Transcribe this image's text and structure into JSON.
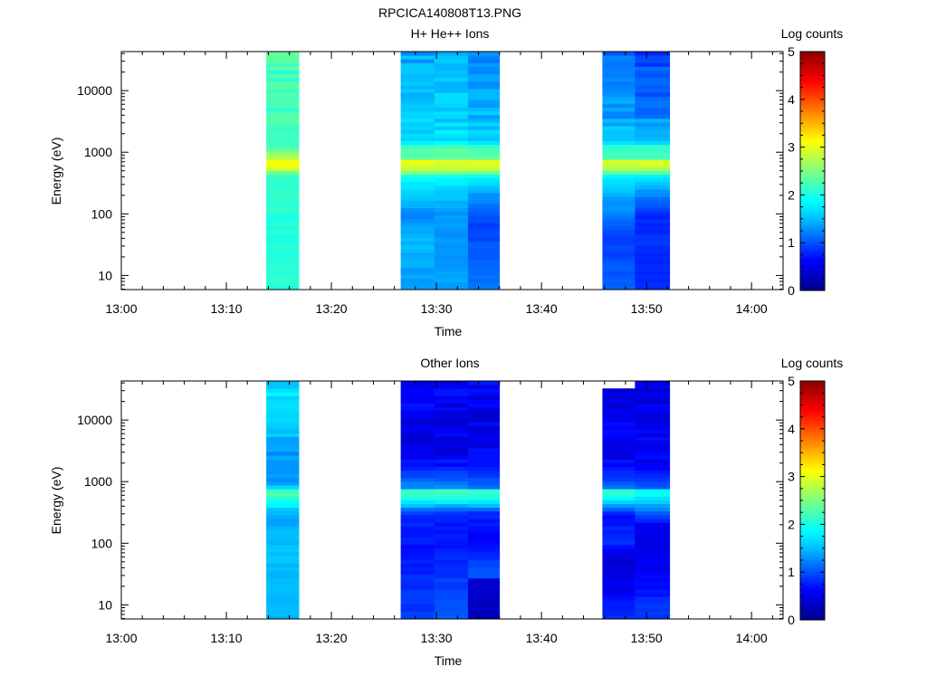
{
  "figure": {
    "title": "RPCICA140808T13.PNG"
  },
  "colors": {
    "colormap": [
      "#00008b",
      "#0000ff",
      "#00bfff",
      "#00ffff",
      "#7fff7f",
      "#ffff00",
      "#ff7f00",
      "#ff0000",
      "#8b0000"
    ]
  },
  "chart_data": [
    {
      "type": "heatmap",
      "title": "H+ He++ Ions",
      "xlabel": "Time",
      "ylabel": "Energy (eV)",
      "y_scale": "log",
      "ylim": [
        5.9,
        43000
      ],
      "xlim": [
        "13:00",
        "14:03"
      ],
      "x_ticks": [
        "13:00",
        "13:10",
        "13:20",
        "13:30",
        "13:40",
        "13:50",
        "14:00"
      ],
      "y_ticks": [
        "10",
        "100",
        "1000",
        "10000"
      ],
      "colorbar": {
        "label": "Log counts",
        "range": [
          0,
          5
        ],
        "ticks": [
          "0",
          "1",
          "2",
          "3",
          "4",
          "5"
        ]
      },
      "columns": [
        {
          "start": "13:13.8",
          "end": "13:16.9",
          "profile": [
            [
              6,
              2.1
            ],
            [
              80,
              2.05
            ],
            [
              400,
              2.15
            ],
            [
              480,
              2.5
            ],
            [
              550,
              3.0
            ],
            [
              700,
              3.1
            ],
            [
              800,
              2.8
            ],
            [
              1100,
              2.4
            ],
            [
              1400,
              2.2
            ],
            [
              5000,
              2.15
            ],
            [
              20000,
              2.2
            ],
            [
              43000,
              2.25
            ]
          ]
        },
        {
          "start": "13:26.6",
          "end": "13:29.8",
          "profile": [
            [
              6,
              1.3
            ],
            [
              40,
              1.5
            ],
            [
              100,
              1.2
            ],
            [
              200,
              1.6
            ],
            [
              400,
              1.9
            ],
            [
              500,
              2.7
            ],
            [
              700,
              3.1
            ],
            [
              800,
              2.3
            ],
            [
              1200,
              2.3
            ],
            [
              1500,
              1.7
            ],
            [
              5000,
              1.5
            ],
            [
              43000,
              1.4
            ]
          ]
        },
        {
          "start": "13:29.8",
          "end": "13:33.0",
          "profile": [
            [
              6,
              1.35
            ],
            [
              100,
              1.3
            ],
            [
              200,
              1.55
            ],
            [
              400,
              1.85
            ],
            [
              500,
              2.7
            ],
            [
              700,
              3.1
            ],
            [
              800,
              2.3
            ],
            [
              1200,
              2.3
            ],
            [
              1500,
              1.7
            ],
            [
              5000,
              1.55
            ],
            [
              43000,
              1.45
            ]
          ]
        },
        {
          "start": "13:33.0",
          "end": "13:36.0",
          "profile": [
            [
              6,
              1.2
            ],
            [
              60,
              0.9
            ],
            [
              100,
              1.0
            ],
            [
              200,
              1.3
            ],
            [
              400,
              1.8
            ],
            [
              500,
              2.7
            ],
            [
              700,
              3.1
            ],
            [
              800,
              2.3
            ],
            [
              1200,
              2.25
            ],
            [
              1500,
              1.6
            ],
            [
              5000,
              1.4
            ],
            [
              43000,
              1.2
            ]
          ]
        },
        {
          "start": "13:45.8",
          "end": "13:48.9",
          "profile": [
            [
              6,
              1.1
            ],
            [
              40,
              0.9
            ],
            [
              100,
              1.2
            ],
            [
              200,
              1.4
            ],
            [
              400,
              1.8
            ],
            [
              500,
              2.6
            ],
            [
              700,
              3.0
            ],
            [
              800,
              2.2
            ],
            [
              1200,
              2.2
            ],
            [
              1500,
              1.6
            ],
            [
              5000,
              1.3
            ],
            [
              43000,
              1.1
            ]
          ]
        },
        {
          "start": "13:48.9",
          "end": "13:52.2",
          "profile": [
            [
              6,
              0.85
            ],
            [
              100,
              0.8
            ],
            [
              200,
              1.2
            ],
            [
              400,
              1.7
            ],
            [
              500,
              2.6
            ],
            [
              700,
              3.0
            ],
            [
              800,
              2.2
            ],
            [
              1200,
              2.2
            ],
            [
              1500,
              1.5
            ],
            [
              5000,
              1.2
            ],
            [
              43000,
              0.9
            ]
          ]
        }
      ]
    },
    {
      "type": "heatmap",
      "title": "Other Ions",
      "xlabel": "Time",
      "ylabel": "Energy (eV)",
      "y_scale": "log",
      "ylim": [
        5.9,
        43000
      ],
      "xlim": [
        "13:00",
        "14:03"
      ],
      "x_ticks": [
        "13:00",
        "13:10",
        "13:20",
        "13:30",
        "13:40",
        "13:50",
        "14:00"
      ],
      "y_ticks": [
        "10",
        "100",
        "1000",
        "10000"
      ],
      "colorbar": {
        "label": "Log counts",
        "range": [
          0,
          5
        ],
        "ticks": [
          "0",
          "1",
          "2",
          "3",
          "4",
          "5"
        ]
      },
      "columns": [
        {
          "start": "13:13.8",
          "end": "13:16.9",
          "profile": [
            [
              6,
              1.5
            ],
            [
              100,
              1.5
            ],
            [
              300,
              1.4
            ],
            [
              500,
              2.0
            ],
            [
              650,
              2.4
            ],
            [
              750,
              1.9
            ],
            [
              1000,
              1.3
            ],
            [
              3000,
              1.4
            ],
            [
              10000,
              1.6
            ],
            [
              43000,
              1.7
            ]
          ]
        },
        {
          "start": "13:26.6",
          "end": "13:29.8",
          "profile": [
            [
              6,
              0.9
            ],
            [
              30,
              0.8
            ],
            [
              100,
              0.7
            ],
            [
              300,
              0.8
            ],
            [
              500,
              1.9
            ],
            [
              700,
              2.3
            ],
            [
              800,
              1.3
            ],
            [
              2000,
              0.6
            ],
            [
              10000,
              0.5
            ],
            [
              43000,
              0.6
            ]
          ]
        },
        {
          "start": "13:29.8",
          "end": "13:33.0",
          "profile": [
            [
              6,
              1.1
            ],
            [
              100,
              0.7
            ],
            [
              300,
              0.8
            ],
            [
              500,
              1.9
            ],
            [
              700,
              2.3
            ],
            [
              800,
              1.3
            ],
            [
              2000,
              0.6
            ],
            [
              10000,
              0.5
            ],
            [
              43000,
              0.6
            ]
          ]
        },
        {
          "start": "13:33.0",
          "end": "13:36.0",
          "profile": [
            [
              6,
              0.3
            ],
            [
              25,
              0.35
            ],
            [
              30,
              1.1
            ],
            [
              100,
              0.6
            ],
            [
              300,
              0.8
            ],
            [
              500,
              1.9
            ],
            [
              700,
              2.3
            ],
            [
              800,
              1.2
            ],
            [
              2000,
              0.6
            ],
            [
              10000,
              0.5
            ],
            [
              43000,
              0.6
            ]
          ]
        },
        {
          "start": "13:45.8",
          "end": "13:48.9",
          "profile": [
            [
              6,
              0.8
            ],
            [
              30,
              0.45
            ],
            [
              60,
              0.4
            ],
            [
              100,
              0.8
            ],
            [
              300,
              0.7
            ],
            [
              500,
              1.8
            ],
            [
              700,
              2.2
            ],
            [
              800,
              1.1
            ],
            [
              2000,
              0.6
            ],
            [
              10000,
              0.5
            ],
            [
              30000,
              0.5
            ]
          ]
        },
        {
          "start": "13:48.9",
          "end": "13:52.2",
          "profile": [
            [
              6,
              0.9
            ],
            [
              50,
              0.55
            ],
            [
              150,
              0.5
            ],
            [
              200,
              0.6
            ],
            [
              500,
              1.6
            ],
            [
              700,
              2.0
            ],
            [
              800,
              1.0
            ],
            [
              2000,
              0.6
            ],
            [
              10000,
              0.5
            ],
            [
              43000,
              0.5
            ]
          ]
        }
      ]
    }
  ]
}
